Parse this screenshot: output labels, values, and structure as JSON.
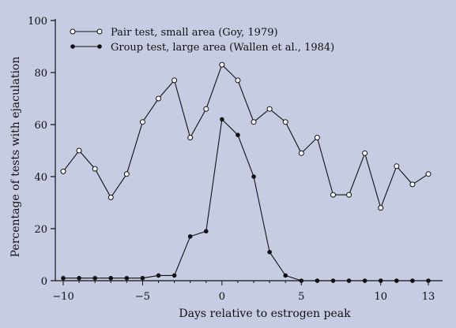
{
  "chart_data": {
    "type": "line",
    "title": "",
    "xlabel": "Days relative to estrogen peak",
    "ylabel": "Percentage of tests with ejaculation",
    "xlim": [
      -10,
      13
    ],
    "ylim": [
      0,
      100
    ],
    "x_ticks": [
      -10,
      -5,
      0,
      5,
      10,
      13
    ],
    "x_tick_labels": [
      "−10",
      "−5",
      "0",
      "5",
      "10",
      "13"
    ],
    "y_ticks": [
      0,
      20,
      40,
      60,
      80,
      100
    ],
    "y_tick_labels": [
      "0",
      "20",
      "40",
      "60",
      "80",
      "100"
    ],
    "grid": false,
    "legend_position": "top-left",
    "series": [
      {
        "name": "Pair test, small area (Goy, 1979)",
        "marker": "open-circle",
        "x": [
          -10,
          -9,
          -8,
          -7,
          -6,
          -5,
          -4,
          -3,
          -2,
          -1,
          0,
          1,
          2,
          3,
          4,
          5,
          6,
          7,
          8,
          9,
          10,
          11,
          12,
          13
        ],
        "values": [
          42,
          50,
          43,
          32,
          41,
          61,
          70,
          77,
          55,
          66,
          83,
          77,
          61,
          66,
          61,
          49,
          55,
          33,
          33,
          49,
          28,
          44,
          37,
          41
        ]
      },
      {
        "name": "Group test, large area (Wallen et al., 1984)",
        "marker": "filled-circle",
        "x": [
          -10,
          -9,
          -8,
          -7,
          -6,
          -5,
          -4,
          -3,
          -2,
          -1,
          0,
          1,
          2,
          3,
          4,
          5,
          6,
          7,
          8,
          9,
          10,
          11,
          12,
          13
        ],
        "values": [
          1,
          1,
          1,
          1,
          1,
          1,
          2,
          2,
          17,
          19,
          62,
          56,
          40,
          11,
          2,
          0,
          0,
          0,
          0,
          0,
          0,
          0,
          0,
          0
        ]
      }
    ]
  }
}
